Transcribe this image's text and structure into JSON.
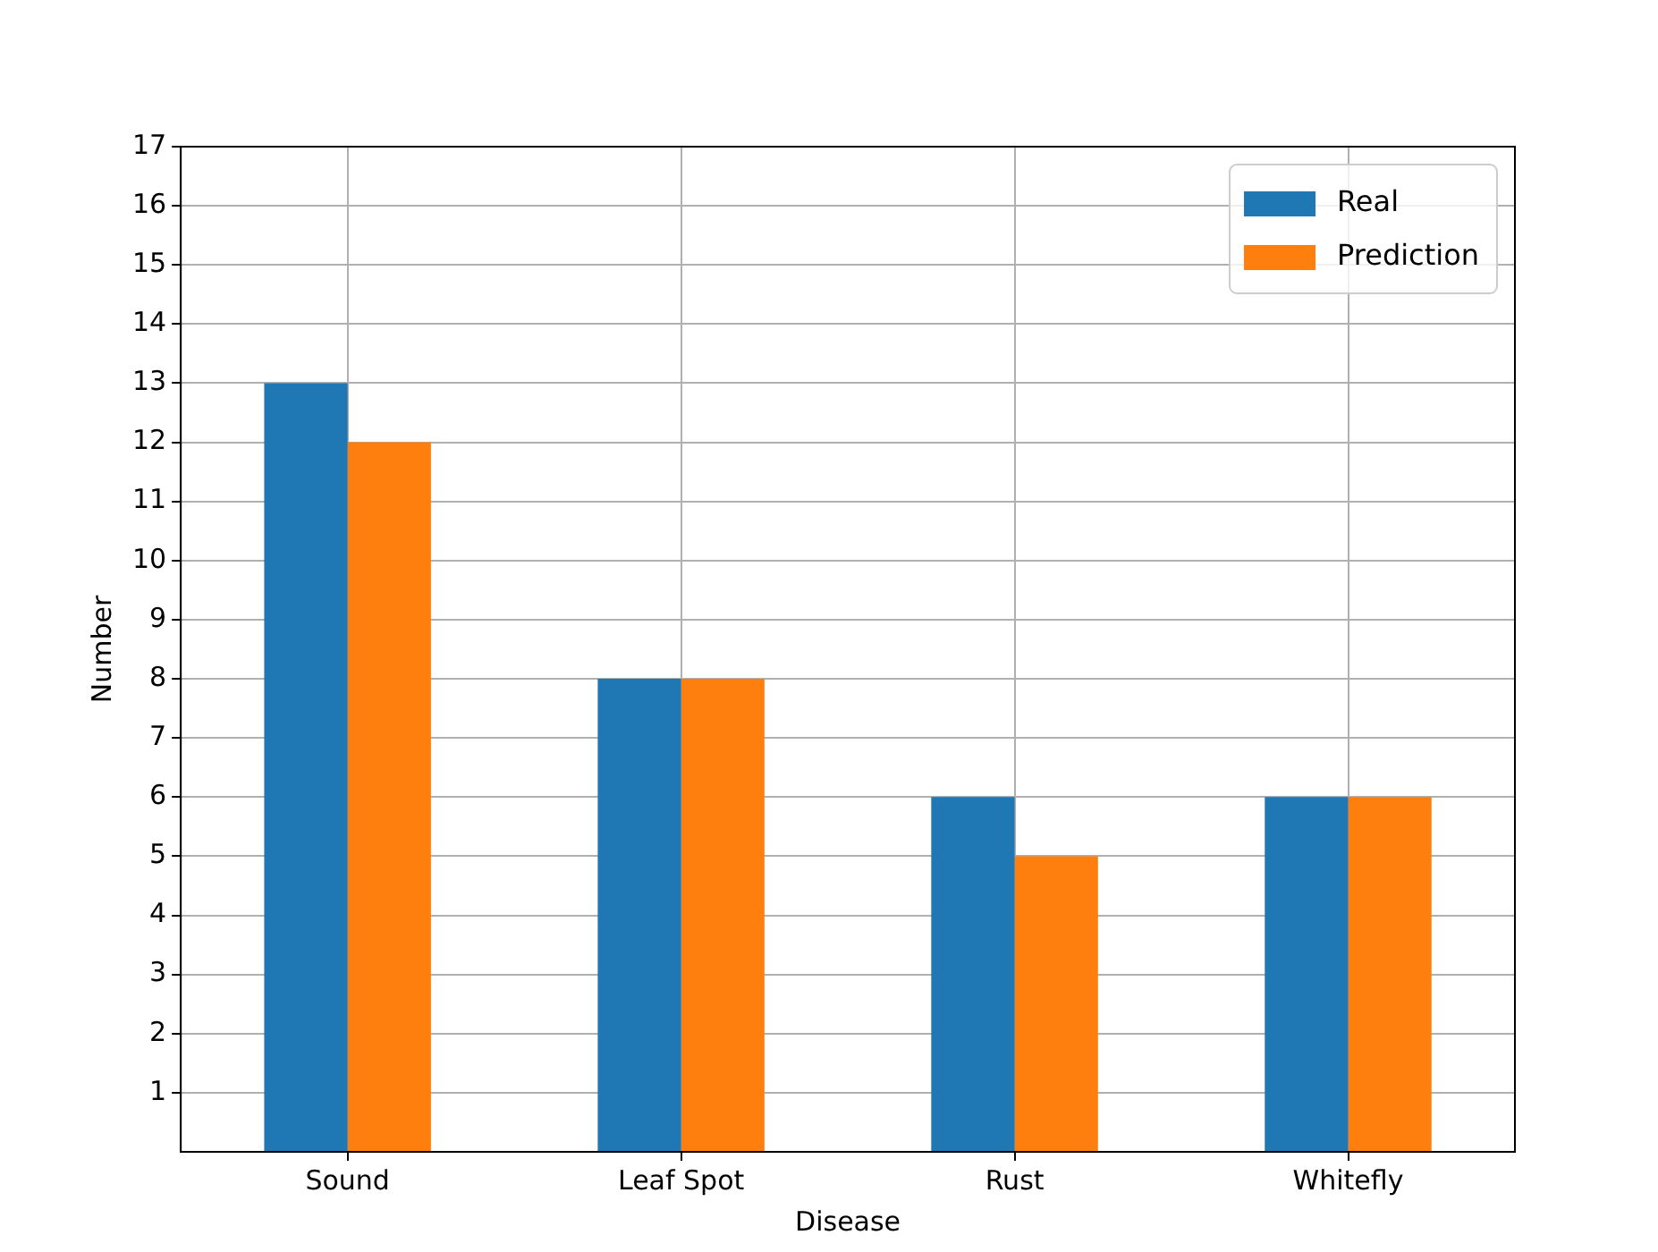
{
  "chart_data": {
    "type": "bar",
    "xlabel": "Disease",
    "ylabel": "Number",
    "categories": [
      "Sound",
      "Leaf Spot",
      "Rust",
      "Whitefly"
    ],
    "series": [
      {
        "name": "Real",
        "color": "#1f77b4",
        "values": [
          13,
          8,
          6,
          6
        ]
      },
      {
        "name": "Prediction",
        "color": "#ff7f0e",
        "values": [
          12,
          8,
          5,
          6
        ]
      }
    ],
    "ylim": [
      0,
      17
    ],
    "yticks": [
      1,
      2,
      3,
      4,
      5,
      6,
      7,
      8,
      9,
      10,
      11,
      12,
      13,
      14,
      15,
      16,
      17
    ],
    "grid": true,
    "legend": "top right"
  }
}
